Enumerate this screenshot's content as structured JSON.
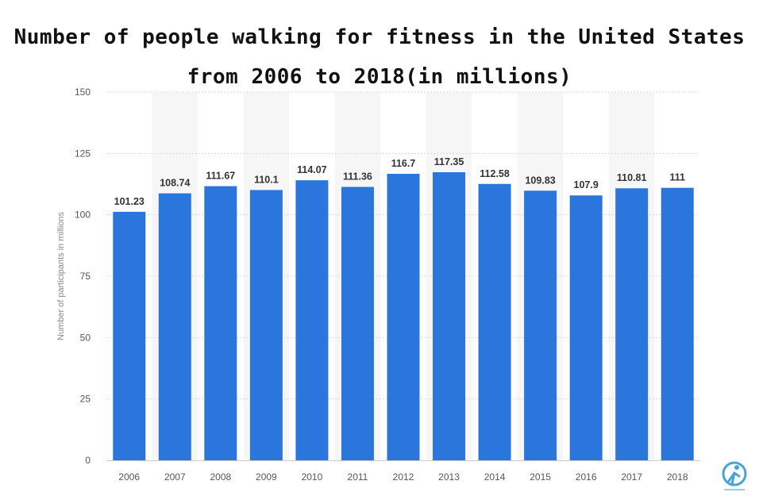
{
  "chart_data": {
    "type": "bar",
    "title": "Number of people walking for fitness in the United States",
    "subtitle": "from 2006 to 2018(in millions)",
    "ylabel": "Number of participants in millions",
    "xlabel": "",
    "categories": [
      "2006",
      "2007",
      "2008",
      "2009",
      "2010",
      "2011",
      "2012",
      "2013",
      "2014",
      "2015",
      "2016",
      "2017",
      "2018"
    ],
    "values": [
      101.23,
      108.74,
      111.67,
      110.1,
      114.07,
      111.36,
      116.7,
      117.35,
      112.58,
      109.83,
      107.9,
      110.81,
      111
    ],
    "value_labels": [
      "101.23",
      "108.74",
      "111.67",
      "110.1",
      "114.07",
      "111.36",
      "116.7",
      "117.35",
      "112.58",
      "109.83",
      "107.9",
      "110.81",
      "111"
    ],
    "ylim": [
      0,
      150
    ],
    "yticks": [
      "0",
      "25",
      "50",
      "75",
      "100",
      "125",
      "150"
    ],
    "grid": true,
    "bar_color": "#2a76dd"
  }
}
